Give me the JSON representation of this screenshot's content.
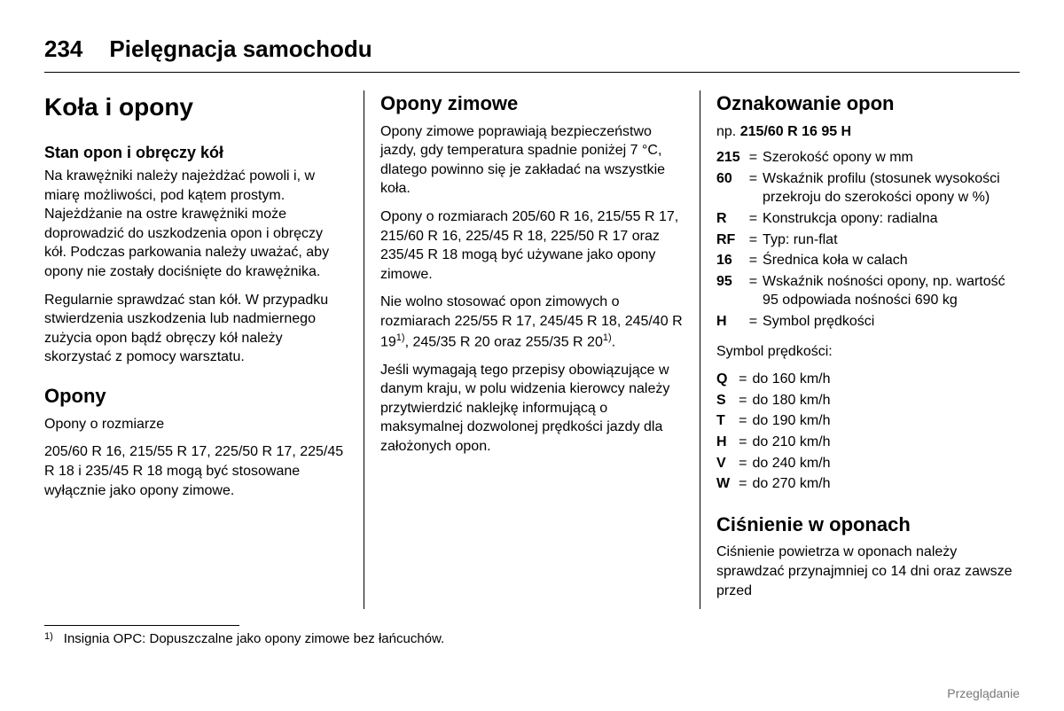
{
  "page_number": "234",
  "chapter_title": "Pielęgnacja samochodu",
  "footer_label": "Przeglądanie",
  "col1": {
    "h1": "Koła i opony",
    "s1_title": "Stan opon i obręczy kół",
    "s1_p1": "Na krawężniki należy najeżdżać powoli i, w miarę możliwości, pod kątem prostym. Najeżdżanie na ostre krawężniki może doprowadzić do uszkodzenia opon i obręczy kół. Podczas parkowania należy uważać, aby opony nie zostały dociśnięte do krawężnika.",
    "s1_p2": "Regularnie sprawdzać stan kół. W przypadku stwierdzenia uszkodzenia lub nadmiernego zużycia opon bądź obręczy kół należy skorzystać z pomocy warsztatu.",
    "s2_title": "Opony",
    "s2_p1": "Opony o rozmiarze",
    "s2_p2": "205/60 R 16, 215/55 R 17, 225/50 R 17, 225/45 R 18 i 235/45 R 18 mogą być stosowane wyłącznie jako opony zimowe."
  },
  "col2": {
    "h2": "Opony zimowe",
    "p1": "Opony zimowe poprawiają bezpieczeństwo jazdy, gdy temperatura spadnie poniżej 7 °C, dlatego powinno się je zakładać na wszystkie koła.",
    "p2": "Opony o rozmiarach 205/60 R 16, 215/55 R 17, 215/60 R 16, 225/45 R 18, 225/50 R 17 oraz 235/45 R 18 mogą być używane jako opony zimowe.",
    "p3a": "Nie wolno stosować opon zimowych o rozmiarach 225/55 R 17, 245/45 R 18, 245/40 R 19",
    "p3b": ", 245/35 R 20 oraz 255/35 R 20",
    "p3c": ".",
    "p4": "Jeśli wymagają tego przepisy obowiązujące w danym kraju, w polu widzenia kierowcy należy przytwierdzić naklejkę informującą o maksymalnej dozwolonej prędkości jazdy dla założonych opon."
  },
  "col3": {
    "h2a": "Oznakowanie opon",
    "ex_prefix": "np. ",
    "ex_bold": "215/60 R 16 95 H",
    "defs": [
      {
        "code": "215",
        "text": "Szerokość opony w mm"
      },
      {
        "code": "60",
        "text": "Wskaźnik profilu (stosunek wysokości przekroju do szerokości opony w %)"
      },
      {
        "code": "R",
        "text": "Konstrukcja opony: radialna"
      },
      {
        "code": "RF",
        "text": "Typ: run-flat"
      },
      {
        "code": "16",
        "text": "Średnica koła w calach"
      },
      {
        "code": "95",
        "text": "Wskaźnik nośności opony, np. wartość 95 odpowiada nośności 690 kg"
      },
      {
        "code": "H",
        "text": "Symbol prędkości"
      }
    ],
    "speed_label": "Symbol prędkości:",
    "speeds": [
      {
        "code": "Q",
        "text": "do 160 km/h"
      },
      {
        "code": "S",
        "text": "do 180 km/h"
      },
      {
        "code": "T",
        "text": "do 190 km/h"
      },
      {
        "code": "H",
        "text": "do 210 km/h"
      },
      {
        "code": "V",
        "text": "do 240 km/h"
      },
      {
        "code": "W",
        "text": "do 270 km/h"
      }
    ],
    "h2b": "Ciśnienie w oponach",
    "p_last": "Ciśnienie powietrza w oponach należy sprawdzać przynajmniej co 14 dni oraz zawsze przed"
  },
  "footnote": {
    "num": "1)",
    "text": "Insignia OPC: Dopuszczalne jako opony zimowe bez łańcuchów."
  }
}
